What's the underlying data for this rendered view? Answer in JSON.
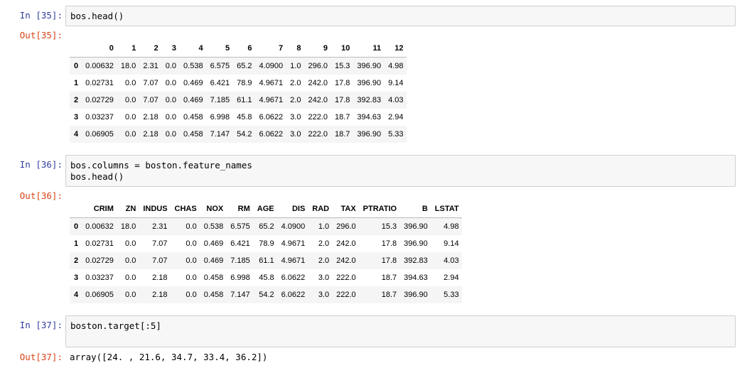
{
  "cells": [
    {
      "in_prompt": "In [35]:",
      "code": [
        "bos.head()"
      ],
      "out_prompt": "Out[35]:",
      "table": {
        "columns": [
          "0",
          "1",
          "2",
          "3",
          "4",
          "5",
          "6",
          "7",
          "8",
          "9",
          "10",
          "11",
          "12"
        ],
        "index": [
          "0",
          "1",
          "2",
          "3",
          "4"
        ],
        "rows": [
          [
            "0.00632",
            "18.0",
            "2.31",
            "0.0",
            "0.538",
            "6.575",
            "65.2",
            "4.0900",
            "1.0",
            "296.0",
            "15.3",
            "396.90",
            "4.98"
          ],
          [
            "0.02731",
            "0.0",
            "7.07",
            "0.0",
            "0.469",
            "6.421",
            "78.9",
            "4.9671",
            "2.0",
            "242.0",
            "17.8",
            "396.90",
            "9.14"
          ],
          [
            "0.02729",
            "0.0",
            "7.07",
            "0.0",
            "0.469",
            "7.185",
            "61.1",
            "4.9671",
            "2.0",
            "242.0",
            "17.8",
            "392.83",
            "4.03"
          ],
          [
            "0.03237",
            "0.0",
            "2.18",
            "0.0",
            "0.458",
            "6.998",
            "45.8",
            "6.0622",
            "3.0",
            "222.0",
            "18.7",
            "394.63",
            "2.94"
          ],
          [
            "0.06905",
            "0.0",
            "2.18",
            "0.0",
            "0.458",
            "7.147",
            "54.2",
            "6.0622",
            "3.0",
            "222.0",
            "18.7",
            "396.90",
            "5.33"
          ]
        ]
      }
    },
    {
      "in_prompt": "In [36]:",
      "code": [
        "bos.columns = boston.feature_names",
        "bos.head()"
      ],
      "out_prompt": "Out[36]:",
      "table": {
        "columns": [
          "CRIM",
          "ZN",
          "INDUS",
          "CHAS",
          "NOX",
          "RM",
          "AGE",
          "DIS",
          "RAD",
          "TAX",
          "PTRATIO",
          "B",
          "LSTAT"
        ],
        "index": [
          "0",
          "1",
          "2",
          "3",
          "4"
        ],
        "rows": [
          [
            "0.00632",
            "18.0",
            "2.31",
            "0.0",
            "0.538",
            "6.575",
            "65.2",
            "4.0900",
            "1.0",
            "296.0",
            "15.3",
            "396.90",
            "4.98"
          ],
          [
            "0.02731",
            "0.0",
            "7.07",
            "0.0",
            "0.469",
            "6.421",
            "78.9",
            "4.9671",
            "2.0",
            "242.0",
            "17.8",
            "396.90",
            "9.14"
          ],
          [
            "0.02729",
            "0.0",
            "7.07",
            "0.0",
            "0.469",
            "7.185",
            "61.1",
            "4.9671",
            "2.0",
            "242.0",
            "17.8",
            "392.83",
            "4.03"
          ],
          [
            "0.03237",
            "0.0",
            "2.18",
            "0.0",
            "0.458",
            "6.998",
            "45.8",
            "6.0622",
            "3.0",
            "222.0",
            "18.7",
            "394.63",
            "2.94"
          ],
          [
            "0.06905",
            "0.0",
            "2.18",
            "0.0",
            "0.458",
            "7.147",
            "54.2",
            "6.0622",
            "3.0",
            "222.0",
            "18.7",
            "396.90",
            "5.33"
          ]
        ]
      }
    },
    {
      "in_prompt": "In [37]:",
      "code": [
        "boston.target[:5]"
      ],
      "out_prompt": "Out[37]:",
      "output_text": "array([24. , 21.6, 34.7, 33.4, 36.2])"
    }
  ]
}
